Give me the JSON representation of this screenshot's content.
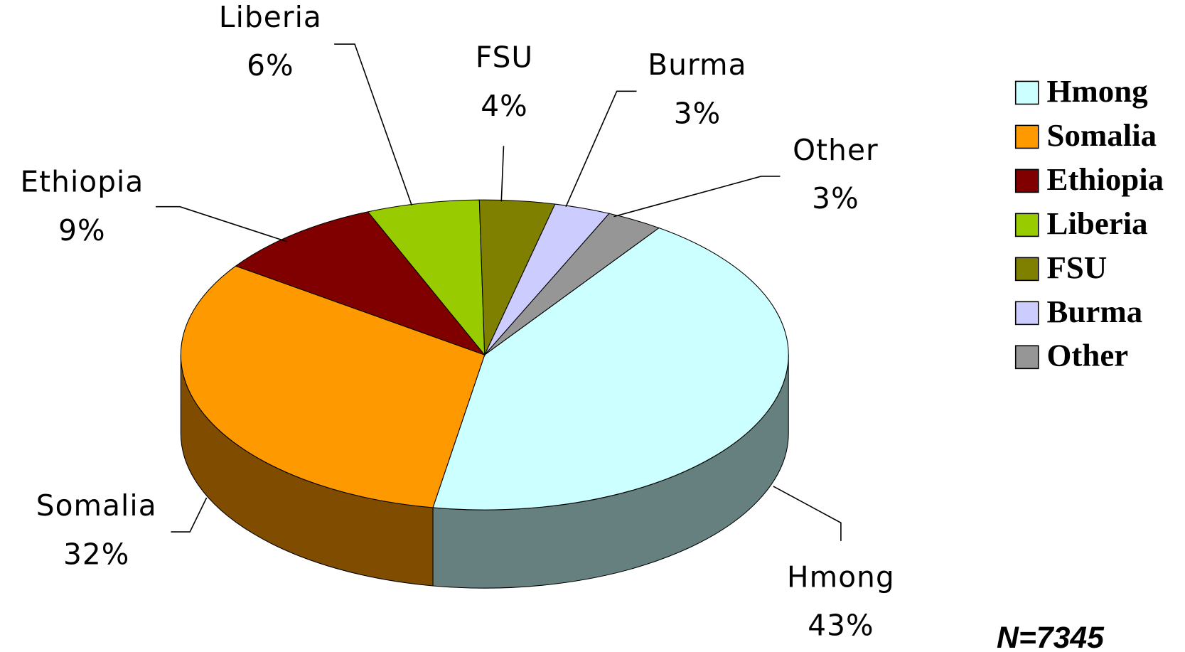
{
  "chart_data": {
    "type": "pie",
    "categories": [
      "Hmong",
      "Somalia",
      "Ethiopia",
      "Liberia",
      "FSU",
      "Burma",
      "Other"
    ],
    "values": [
      43,
      32,
      9,
      6,
      4,
      3,
      3
    ],
    "value_labels": [
      "43%",
      "32%",
      "9%",
      "6%",
      "4%",
      "3%",
      "3%"
    ],
    "colors": [
      "#ccffff",
      "#ff9900",
      "#800000",
      "#99cc00",
      "#808000",
      "#ccccff",
      "#969696"
    ],
    "legend": "right",
    "annotation": "N=7345"
  }
}
